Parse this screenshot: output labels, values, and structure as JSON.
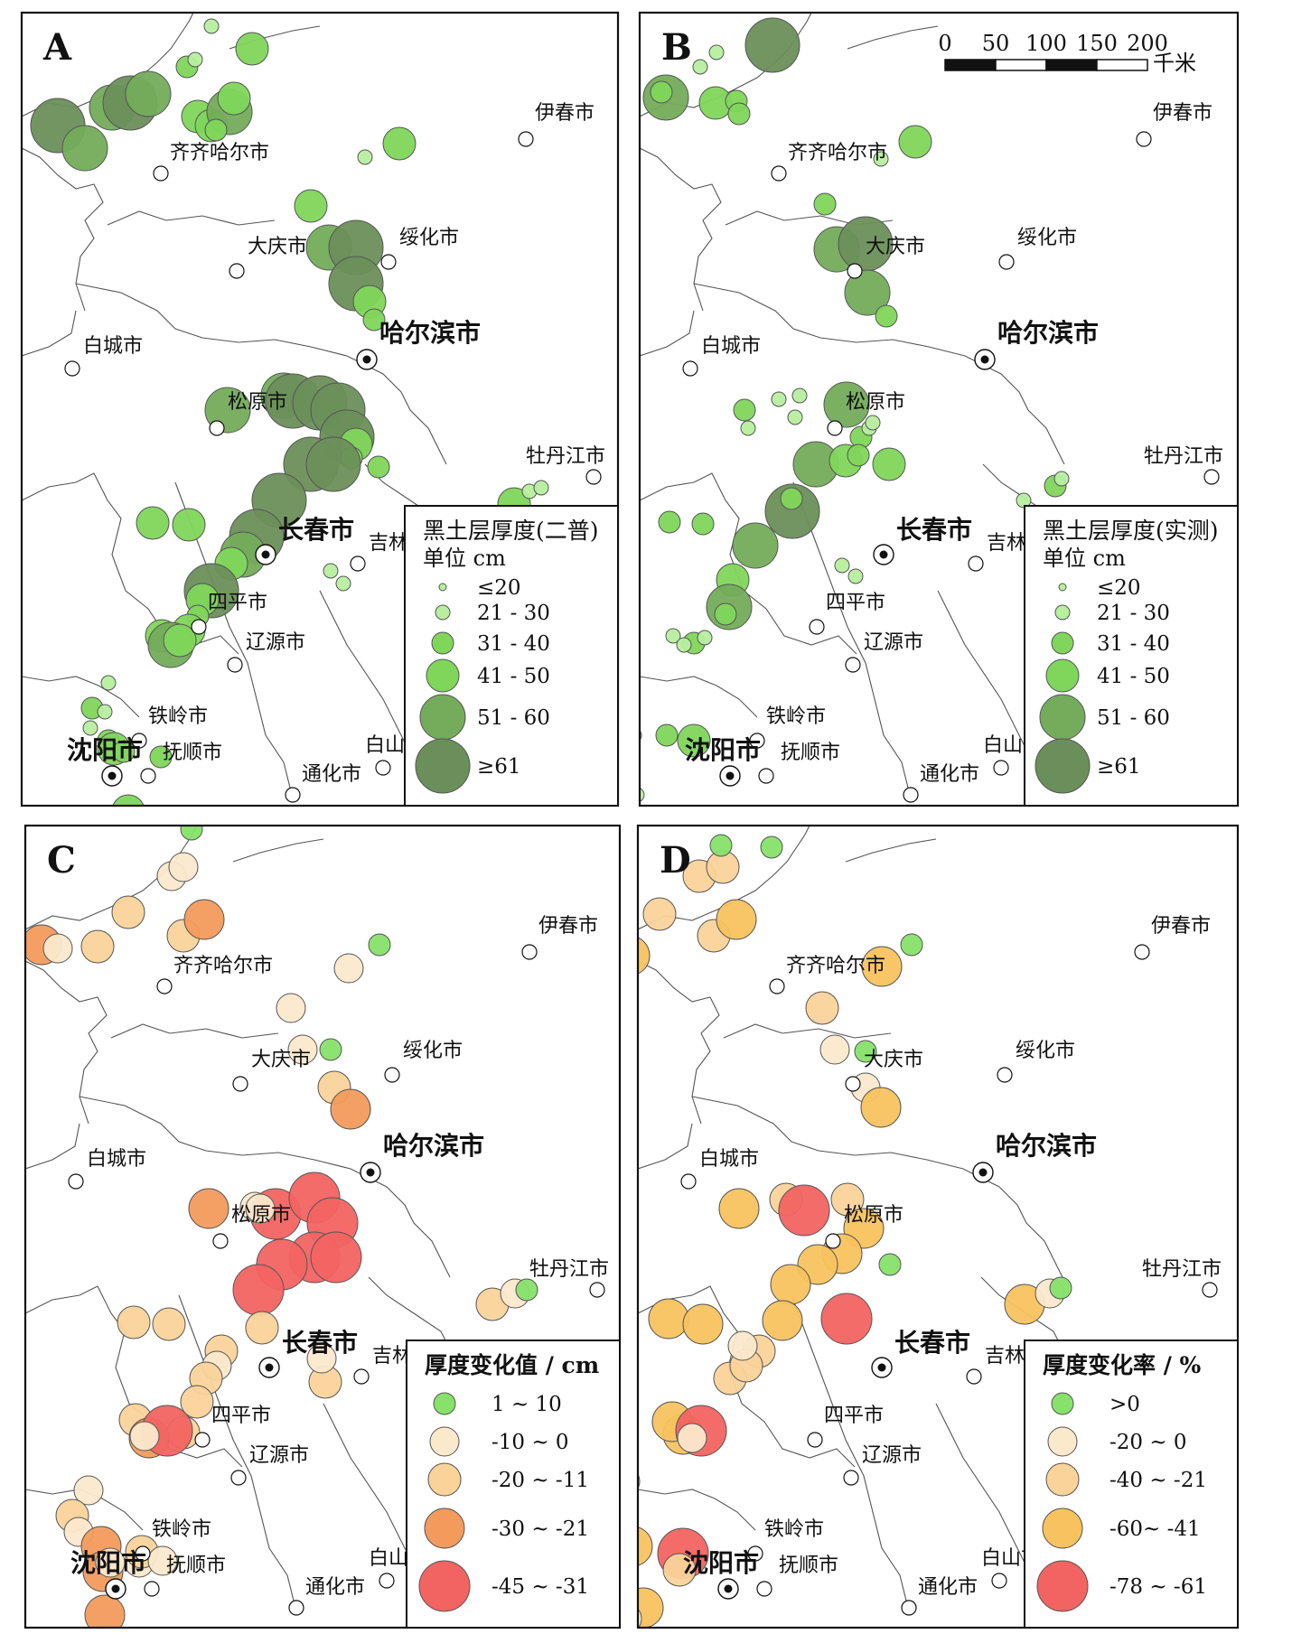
{
  "panels": [
    {
      "letter": "A",
      "legend": {
        "title1": "黑土层厚度(二普)",
        "title2": "单位  cm",
        "items": [
          "≤20",
          "21 - 30",
          "31 - 40",
          "41 - 50",
          "51 - 60",
          "≥61"
        ]
      }
    },
    {
      "letter": "B",
      "scalebar": {
        "ticks": [
          "0",
          "50",
          "100",
          "150",
          "200"
        ],
        "unit": "千米"
      },
      "legend": {
        "title1": "黑土层厚度(实测)",
        "title2": "单位  cm",
        "items": [
          "≤20",
          "21 - 30",
          "31 - 40",
          "41 - 50",
          "51 - 60",
          "≥61"
        ]
      }
    },
    {
      "letter": "C",
      "legend": {
        "title1": "厚度变化值 / cm",
        "items": [
          "1 ~ 10",
          "-10 ~ 0",
          "-20 ~ -11",
          "-30 ~ -21",
          "-45 ~ -31"
        ]
      }
    },
    {
      "letter": "D",
      "legend": {
        "title1": "厚度变化率 / %",
        "items": [
          ">0",
          "-20 ~ 0",
          "-40 ~ -21",
          "-60~ -41",
          "-78 ~ -61"
        ]
      }
    }
  ],
  "cities": {
    "yichun": "伊春市",
    "qiqihar": "齐齐哈尔市",
    "daqing": "大庆市",
    "suihua": "绥化市",
    "harbin": "哈尔滨市",
    "baicheng": "白城市",
    "songyuan": "松原市",
    "mudanjiang": "牡丹江市",
    "changchun": "长春市",
    "jilin": "吉林市",
    "siping": "四平市",
    "liaoyuan": "辽源市",
    "tieling": "铁岭市",
    "shenyang": "沈阳市",
    "fushun": "抚顺市",
    "baishan": "白山市",
    "tonghua": "通化市"
  },
  "colors": {
    "green_dark": "#6b8f5a",
    "green_mid": "#74ac5b",
    "green_light": "#7fd65b",
    "green_pale": "#b7ef9f",
    "change_green": "#86e26a",
    "cream": "#fbe9cc",
    "tan": "#fad39a",
    "orange": "#f39b5d",
    "red": "#f26462",
    "amber": "#f8c35f"
  }
}
